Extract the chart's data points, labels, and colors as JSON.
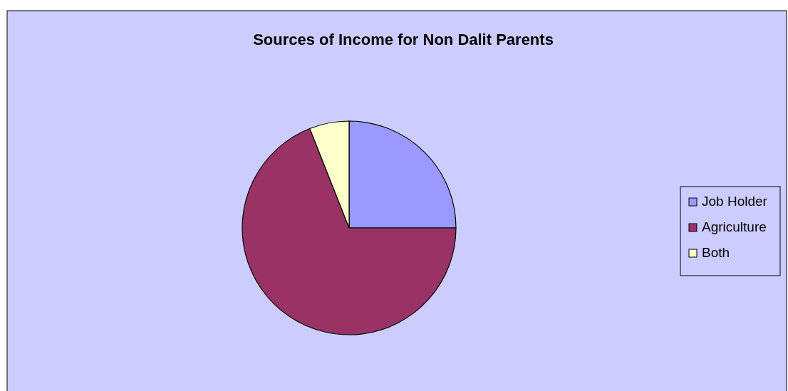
{
  "chart_data": {
    "type": "pie",
    "title": "Sources of Income for Non Dalit Parents",
    "categories": [
      "Job Holder",
      "Agriculture",
      "Both"
    ],
    "values": [
      25,
      69,
      6
    ],
    "colors": [
      "#9999ff",
      "#993366",
      "#ffffcc"
    ],
    "legend": "right"
  }
}
